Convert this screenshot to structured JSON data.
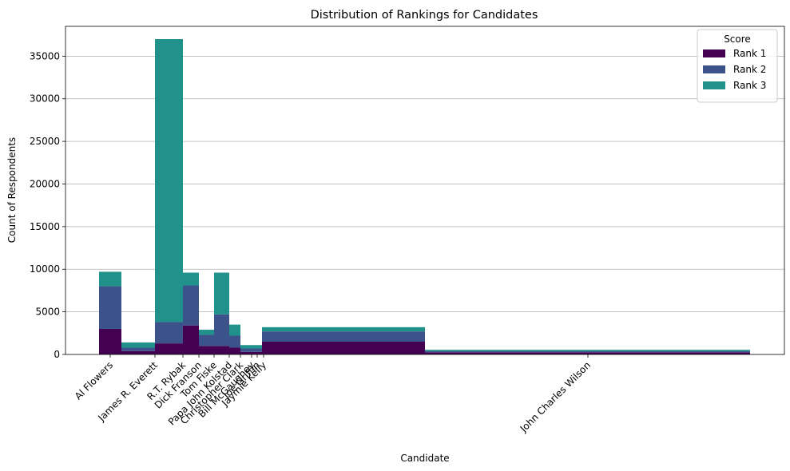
{
  "chart_data": {
    "type": "bar",
    "stacked": true,
    "variable_width": true,
    "title": "Distribution of Rankings for Candidates",
    "xlabel": "Candidate",
    "ylabel": "Count of Respondents",
    "ylim": [
      0,
      38500
    ],
    "yticks": [
      0,
      5000,
      10000,
      15000,
      20000,
      25000,
      30000,
      35000
    ],
    "grid": "y",
    "legend": {
      "title": "Score",
      "position": "top-right"
    },
    "categories": [
      "Al Flowers",
      "James R. Everett",
      "R.T. Rybak",
      "Dick Franson",
      "Tom Fiske",
      "Papa John Kolstad",
      "Christopher Clark",
      "Bill McGaughey",
      "Joe Griffin",
      "Jaymie Kelly",
      "John Charles Wilson"
    ],
    "series": [
      {
        "name": "Rank 1",
        "color": "#440154",
        "values": [
          3000,
          400,
          1300,
          3400,
          1000,
          1000,
          800,
          300,
          300,
          1500,
          250
        ]
      },
      {
        "name": "Rank 2",
        "color": "#3b528b",
        "values": [
          5000,
          400,
          2500,
          4700,
          1300,
          3700,
          1400,
          400,
          400,
          1200,
          150
        ]
      },
      {
        "name": "Rank 3",
        "color": "#21918c",
        "values": [
          1700,
          600,
          33200,
          1500,
          600,
          4900,
          1300,
          400,
          400,
          500,
          150
        ]
      }
    ]
  }
}
